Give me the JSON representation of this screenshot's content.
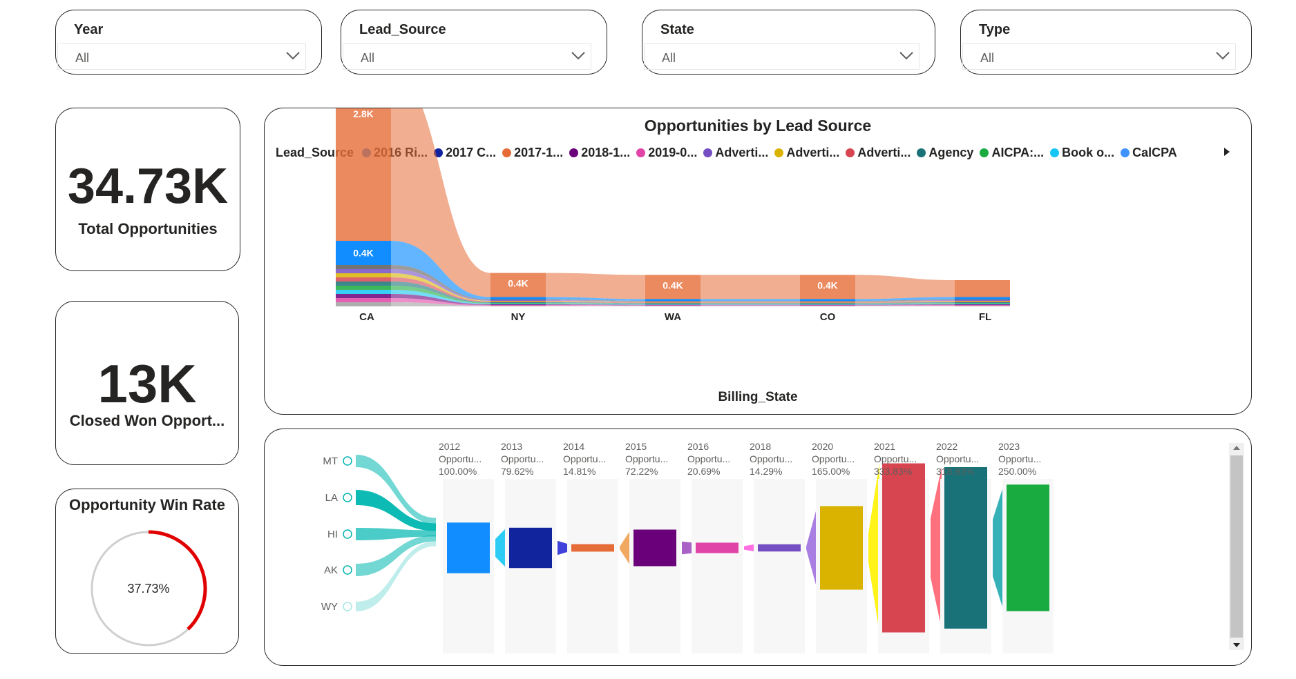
{
  "filters": [
    {
      "label": "Year",
      "value": "All"
    },
    {
      "label": "Lead_Source",
      "value": "All"
    },
    {
      "label": "State",
      "value": "All"
    },
    {
      "label": "Type",
      "value": "All"
    }
  ],
  "kpis": {
    "total": {
      "value": "34.73K",
      "label": "Total Opportunities"
    },
    "closed": {
      "value": "13K",
      "label": "Closed Won Opport..."
    }
  },
  "win_rate": {
    "title": "Opportunity Win Rate",
    "value_text": "37.73%",
    "value": 37.73,
    "color": "#e00000"
  },
  "lead_chart": {
    "title": "Opportunities by Lead Source",
    "legend_title": "Lead_Source",
    "legend": [
      {
        "name": "2016 Ri...",
        "color": "#118dff"
      },
      {
        "name": "2017 C...",
        "color": "#12239e"
      },
      {
        "name": "2017-1...",
        "color": "#e66c37"
      },
      {
        "name": "2018-1...",
        "color": "#6b007b"
      },
      {
        "name": "2019-0...",
        "color": "#e044a7"
      },
      {
        "name": "Adverti...",
        "color": "#744ec2"
      },
      {
        "name": "Adverti...",
        "color": "#d9b300"
      },
      {
        "name": "Adverti...",
        "color": "#d64550"
      },
      {
        "name": "Agency",
        "color": "#197278"
      },
      {
        "name": "AICPA:...",
        "color": "#1aab40"
      },
      {
        "name": "Book o...",
        "color": "#15c6f4"
      },
      {
        "name": "CalCPA",
        "color": "#4092ff"
      }
    ],
    "x_axis_title": "Billing_State"
  },
  "chart_data": [
    {
      "type": "area",
      "title": "Opportunities by Lead Source",
      "xlabel": "Billing_State",
      "categories": [
        "CA",
        "NY",
        "WA",
        "CO",
        "FL"
      ],
      "top_series_labels": [
        "2.8K",
        "0.4K",
        "0.4K",
        "0.4K",
        ""
      ],
      "second_series_label_ca": "0.4K",
      "top_series_values": [
        2800,
        400,
        400,
        400,
        280
      ],
      "second_series_values": [
        400,
        40,
        30,
        30,
        40
      ],
      "top_series_color": "#e66c37",
      "second_series_color": "#118dff"
    },
    {
      "type": "bar",
      "states": [
        "MT",
        "LA",
        "HI",
        "AK",
        "WY"
      ],
      "categories": [
        "2012",
        "2013",
        "2014",
        "2015",
        "2016",
        "2018",
        "2020",
        "2021",
        "2022",
        "2023"
      ],
      "sublabels": [
        "Opportu...",
        "Opportu...",
        "Opportu...",
        "Opportu...",
        "Opportu...",
        "Opportu...",
        "Opportu...",
        "Opportu...",
        "Opportu...",
        "Opportu..."
      ],
      "percent_labels": [
        "100.00%",
        "79.62%",
        "14.81%",
        "72.22%",
        "20.69%",
        "14.29%",
        "165.00%",
        "333.83%",
        "318.83%",
        "250.00%"
      ],
      "values": [
        100.0,
        79.62,
        14.81,
        72.22,
        20.69,
        14.29,
        165.0,
        333.83,
        318.83,
        250.0
      ],
      "colors": [
        "#118dff",
        "#12239e",
        "#e66c37",
        "#6b007b",
        "#e044a7",
        "#744ec2",
        "#d9b300",
        "#d64550",
        "#197278",
        "#1aab40"
      ]
    }
  ]
}
